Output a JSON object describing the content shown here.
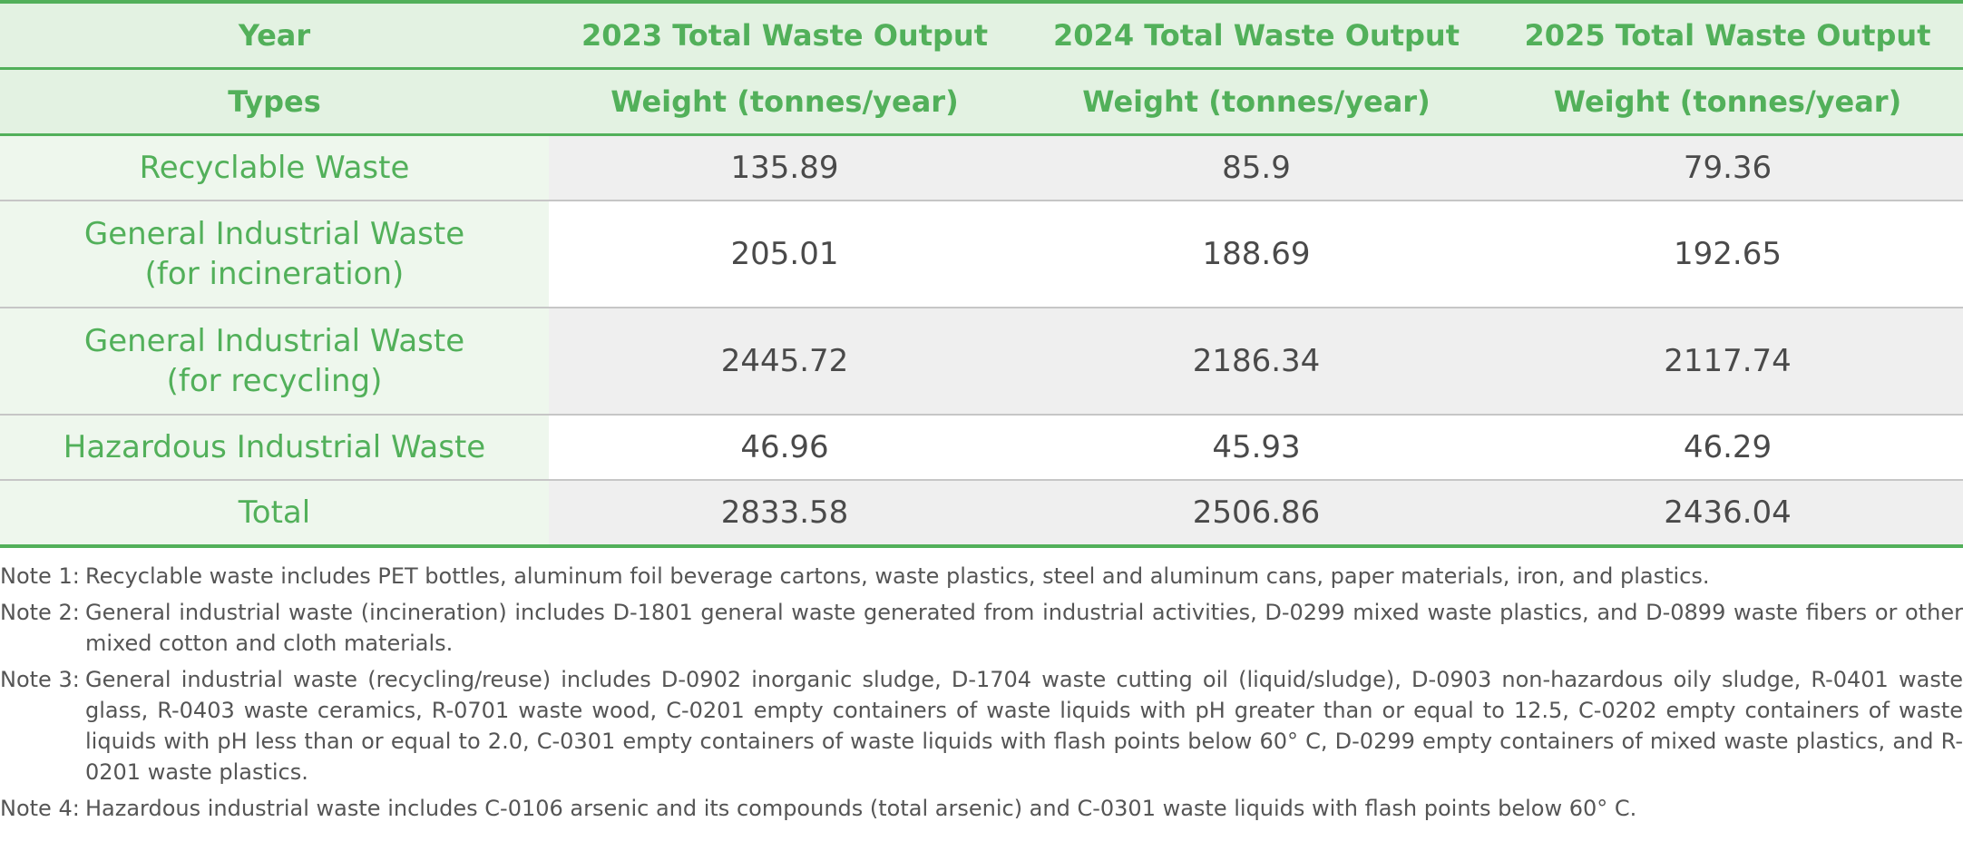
{
  "table": {
    "header_row1": [
      "Year",
      "2023 Total Waste Output",
      "2024 Total Waste Output",
      "2025 Total Waste Output"
    ],
    "header_row2": [
      "Types",
      "Weight (tonnes/year)",
      "Weight (tonnes/year)",
      "Weight (tonnes/year)"
    ],
    "rows": [
      {
        "label": "Recyclable Waste",
        "values": [
          "135.89",
          "85.9",
          "79.36"
        ]
      },
      {
        "label": "General Industrial Waste (for incineration)",
        "values": [
          "205.01",
          "188.69",
          "192.65"
        ]
      },
      {
        "label": "General Industrial Waste (for recycling)",
        "values": [
          "2445.72",
          "2186.34",
          "2117.74"
        ]
      },
      {
        "label": "Hazardous Industrial Waste",
        "values": [
          "46.96",
          "45.93",
          "46.29"
        ]
      },
      {
        "label": "Total",
        "values": [
          "2833.58",
          "2506.86",
          "2436.04"
        ]
      }
    ]
  },
  "notes": [
    {
      "tag": "Note 1:",
      "text": "Recyclable waste includes PET bottles, aluminum foil beverage cartons, waste plastics, steel and aluminum cans, paper materials, iron, and plastics."
    },
    {
      "tag": "Note 2:",
      "text": "General industrial waste (incineration) includes D-1801 general waste generated from industrial activities, D-0299 mixed waste plastics, and D-0899 waste fibers or other mixed cotton and cloth materials."
    },
    {
      "tag": "Note 3:",
      "text": "General industrial waste (recycling/reuse) includes D-0902 inorganic sludge, D-1704 waste cutting oil (liquid/sludge), D-0903 non-hazardous oily sludge, R-0401 waste glass, R-0403 waste ceramics, R-0701 waste wood, C-0201 empty containers of waste liquids with pH greater than or equal to 12.5, C-0202 empty containers of waste liquids with pH less than or equal to 2.0, C-0301 empty containers of waste liquids with flash points below 60° C, D-0299 empty containers of mixed waste plastics, and R-0201 waste plastics."
    },
    {
      "tag": "Note 4:",
      "text": "Hazardous industrial waste includes C-0106 arsenic and its compounds (total arsenic) and C-0301 waste liquids with flash points below 60° C."
    }
  ],
  "colors": {
    "accent_green": "#52b05a",
    "header_bg": "#e3f2e2",
    "label_bg": "#eef7ed",
    "row_gray": "#efefef"
  }
}
